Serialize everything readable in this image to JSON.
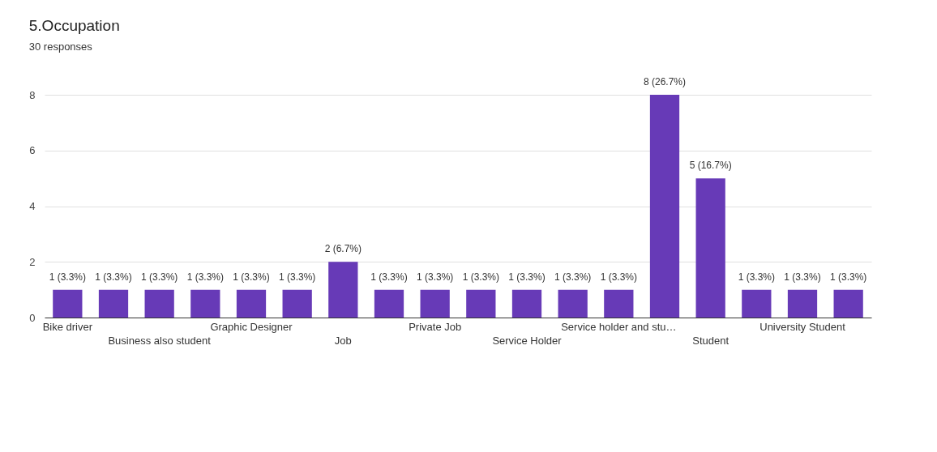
{
  "chart_data": {
    "type": "bar",
    "title": "5.Occupation",
    "subtitle": "30 responses",
    "categories": [
      "Bike driver",
      null,
      "Business also student",
      null,
      "Graphic Designer",
      null,
      "Job",
      null,
      "Private Job",
      null,
      "Service Holder",
      null,
      "Service holder and stu…",
      null,
      "Student",
      null,
      "University Student",
      null
    ],
    "values": [
      1,
      1,
      1,
      1,
      1,
      1,
      2,
      1,
      1,
      1,
      1,
      1,
      1,
      8,
      5,
      1,
      1,
      1
    ],
    "value_labels": [
      "1 (3.3%)",
      "1 (3.3%)",
      "1 (3.3%)",
      "1 (3.3%)",
      "1 (3.3%)",
      "1 (3.3%)",
      "2 (6.7%)",
      "1 (3.3%)",
      "1 (3.3%)",
      "1 (3.3%)",
      "1 (3.3%)",
      "1 (3.3%)",
      "1 (3.3%)",
      "8 (26.7%)",
      "5 (16.7%)",
      "1 (3.3%)",
      "1 (3.3%)",
      "1 (3.3%)"
    ],
    "color": "#673ab7",
    "ylim": [
      0,
      8
    ],
    "yticks": [
      0,
      2,
      4,
      6,
      8
    ],
    "grid": true
  }
}
